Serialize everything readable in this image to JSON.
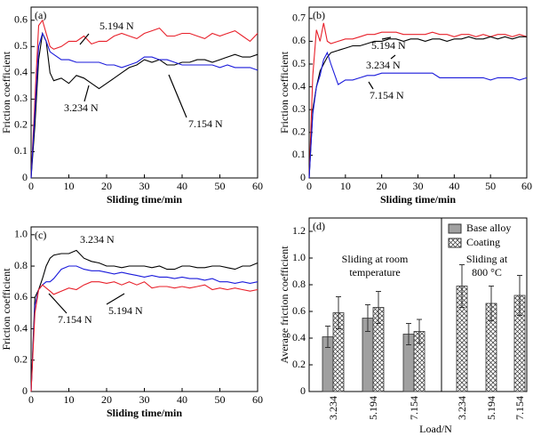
{
  "chart_data": [
    {
      "type": "line",
      "panel_label": "(a)",
      "x_label": "Sliding time/min",
      "y_label": "Friction coefficient",
      "x": [
        0,
        1,
        2,
        3,
        4,
        5,
        6,
        8,
        10,
        12,
        14,
        16,
        18,
        20,
        22,
        24,
        26,
        28,
        30,
        32,
        34,
        36,
        38,
        40,
        42,
        44,
        46,
        48,
        50,
        52,
        54,
        56,
        58,
        60
      ],
      "xlim": [
        0,
        60
      ],
      "xticks": [
        0,
        10,
        20,
        30,
        40,
        50,
        60
      ],
      "ylim": [
        0,
        0.65
      ],
      "yticks": [
        0,
        0.1,
        0.2,
        0.3,
        0.4,
        0.5,
        0.6
      ],
      "series": [
        {
          "name": "5.194 N",
          "color": "#e8202a",
          "values": [
            0,
            0.3,
            0.58,
            0.6,
            0.55,
            0.5,
            0.49,
            0.5,
            0.52,
            0.52,
            0.54,
            0.51,
            0.52,
            0.52,
            0.54,
            0.55,
            0.54,
            0.53,
            0.55,
            0.56,
            0.57,
            0.54,
            0.54,
            0.55,
            0.55,
            0.54,
            0.53,
            0.55,
            0.54,
            0.55,
            0.56,
            0.54,
            0.52,
            0.55
          ]
        },
        {
          "name": "3.234 N",
          "color": "#000000",
          "values": [
            0,
            0.2,
            0.45,
            0.55,
            0.52,
            0.4,
            0.37,
            0.38,
            0.36,
            0.39,
            0.38,
            0.36,
            0.34,
            0.36,
            0.38,
            0.4,
            0.42,
            0.43,
            0.45,
            0.44,
            0.45,
            0.43,
            0.43,
            0.44,
            0.44,
            0.45,
            0.45,
            0.44,
            0.45,
            0.46,
            0.47,
            0.46,
            0.46,
            0.47
          ]
        },
        {
          "name": "7.154 N",
          "color": "#1a1adb",
          "values": [
            0,
            0.25,
            0.5,
            0.55,
            0.52,
            0.48,
            0.47,
            0.45,
            0.45,
            0.44,
            0.44,
            0.44,
            0.44,
            0.43,
            0.43,
            0.42,
            0.43,
            0.44,
            0.46,
            0.46,
            0.45,
            0.45,
            0.44,
            0.43,
            0.43,
            0.43,
            0.43,
            0.43,
            0.42,
            0.43,
            0.42,
            0.42,
            0.42,
            0.41
          ]
        }
      ]
    },
    {
      "type": "line",
      "panel_label": "(b)",
      "x_label": "Sliding time/min",
      "y_label": "Friction coefficient",
      "x": [
        0,
        1,
        2,
        3,
        4,
        5,
        6,
        8,
        10,
        12,
        14,
        16,
        18,
        20,
        22,
        24,
        26,
        28,
        30,
        32,
        34,
        36,
        38,
        40,
        42,
        44,
        46,
        48,
        50,
        52,
        54,
        56,
        58,
        60
      ],
      "xlim": [
        0,
        60
      ],
      "xticks": [
        0,
        10,
        20,
        30,
        40,
        50,
        60
      ],
      "ylim": [
        0,
        0.75
      ],
      "yticks": [
        0,
        0.1,
        0.2,
        0.3,
        0.4,
        0.5,
        0.6,
        0.7
      ],
      "series": [
        {
          "name": "5.194 N",
          "color": "#e8202a",
          "values": [
            0,
            0.45,
            0.65,
            0.6,
            0.68,
            0.6,
            0.59,
            0.6,
            0.61,
            0.61,
            0.62,
            0.63,
            0.63,
            0.64,
            0.64,
            0.64,
            0.63,
            0.63,
            0.63,
            0.63,
            0.64,
            0.63,
            0.63,
            0.62,
            0.63,
            0.63,
            0.62,
            0.63,
            0.62,
            0.63,
            0.63,
            0.62,
            0.63,
            0.62
          ]
        },
        {
          "name": "3.234 N",
          "color": "#000000",
          "values": [
            0,
            0.3,
            0.4,
            0.47,
            0.5,
            0.53,
            0.55,
            0.56,
            0.57,
            0.58,
            0.58,
            0.59,
            0.6,
            0.6,
            0.61,
            0.61,
            0.6,
            0.61,
            0.61,
            0.6,
            0.61,
            0.61,
            0.6,
            0.61,
            0.61,
            0.62,
            0.61,
            0.61,
            0.62,
            0.61,
            0.62,
            0.61,
            0.62,
            0.62
          ]
        },
        {
          "name": "7.154 N",
          "color": "#1a1adb",
          "values": [
            0,
            0.28,
            0.4,
            0.45,
            0.52,
            0.55,
            0.5,
            0.41,
            0.43,
            0.43,
            0.44,
            0.45,
            0.45,
            0.46,
            0.46,
            0.46,
            0.46,
            0.46,
            0.46,
            0.46,
            0.46,
            0.44,
            0.44,
            0.44,
            0.44,
            0.44,
            0.44,
            0.44,
            0.43,
            0.44,
            0.44,
            0.44,
            0.43,
            0.44
          ]
        }
      ]
    },
    {
      "type": "line",
      "panel_label": "(c)",
      "x_label": "Sliding time/min",
      "y_label": "Friction coefficient",
      "x": [
        0,
        1,
        2,
        3,
        4,
        5,
        6,
        8,
        10,
        12,
        14,
        16,
        18,
        20,
        22,
        24,
        26,
        28,
        30,
        32,
        34,
        36,
        38,
        40,
        42,
        44,
        46,
        48,
        50,
        52,
        54,
        56,
        58,
        60
      ],
      "xlim": [
        0,
        60
      ],
      "xticks": [
        0,
        10,
        20,
        30,
        40,
        50,
        60
      ],
      "ylim": [
        0,
        1.05
      ],
      "yticks": [
        0,
        0.2,
        0.4,
        0.6,
        0.8,
        {
          "value": 1,
          "label": "1.0"
        }
      ],
      "series": [
        {
          "name": "3.234 N",
          "color": "#000000",
          "values": [
            0,
            0.6,
            0.65,
            0.72,
            0.8,
            0.85,
            0.87,
            0.88,
            0.88,
            0.9,
            0.85,
            0.83,
            0.82,
            0.8,
            0.8,
            0.79,
            0.8,
            0.8,
            0.8,
            0.79,
            0.8,
            0.78,
            0.78,
            0.8,
            0.8,
            0.79,
            0.79,
            0.8,
            0.8,
            0.79,
            0.78,
            0.8,
            0.8,
            0.82
          ]
        },
        {
          "name": "7.154 N",
          "color": "#1a1adb",
          "values": [
            0,
            0.55,
            0.65,
            0.68,
            0.7,
            0.7,
            0.72,
            0.78,
            0.8,
            0.8,
            0.78,
            0.77,
            0.77,
            0.76,
            0.75,
            0.76,
            0.75,
            0.74,
            0.73,
            0.74,
            0.73,
            0.73,
            0.72,
            0.73,
            0.72,
            0.72,
            0.71,
            0.72,
            0.7,
            0.7,
            0.69,
            0.7,
            0.69,
            0.7
          ]
        },
        {
          "name": "5.194 N",
          "color": "#e8202a",
          "values": [
            0,
            0.5,
            0.65,
            0.68,
            0.66,
            0.64,
            0.62,
            0.64,
            0.66,
            0.65,
            0.68,
            0.7,
            0.7,
            0.69,
            0.7,
            0.68,
            0.7,
            0.68,
            0.7,
            0.66,
            0.67,
            0.67,
            0.66,
            0.67,
            0.66,
            0.67,
            0.68,
            0.65,
            0.66,
            0.65,
            0.66,
            0.65,
            0.64,
            0.65
          ]
        }
      ]
    },
    {
      "type": "bar",
      "panel_label": "(d)",
      "x_label": "Load/N",
      "y_label": "Average friction coefficient",
      "categories": [
        "3.234",
        "5.194",
        "7.154",
        "3.234",
        "5.194",
        "7.154"
      ],
      "ylim": [
        0,
        1.3
      ],
      "yticks": [
        0,
        0.2,
        0.4,
        0.6,
        0.8,
        {
          "value": 1,
          "label": "1.0"
        },
        {
          "value": 1.2,
          "label": "1.2"
        }
      ],
      "annotations": [
        [
          "Sliding at room",
          "temperature"
        ],
        [
          "Sliding at",
          "800 °C"
        ]
      ],
      "legend": "top-right",
      "series": [
        {
          "name": "Base alloy",
          "color": "#a0a0a0",
          "values": [
            0.41,
            0.55,
            0.43,
            null,
            null,
            null
          ],
          "errors": [
            0.08,
            0.1,
            0.08,
            null,
            null,
            null
          ]
        },
        {
          "name": "Coating",
          "color": "hatch",
          "values": [
            0.59,
            0.63,
            0.45,
            0.79,
            0.66,
            0.72
          ],
          "errors": [
            0.12,
            0.12,
            0.09,
            0.16,
            0.13,
            0.15
          ]
        }
      ]
    }
  ]
}
